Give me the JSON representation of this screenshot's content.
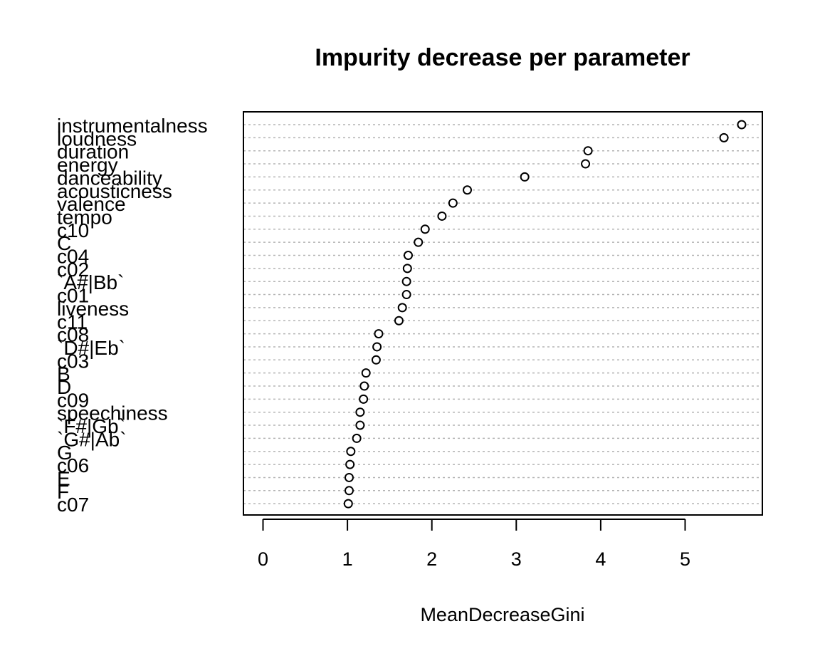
{
  "chart_data": {
    "type": "scatter",
    "title": "Impurity decrease per parameter",
    "xlabel": "MeanDecreaseGini",
    "ylabel": "",
    "xlim": [
      0,
      5.8
    ],
    "xticks": [
      0,
      1,
      2,
      3,
      4,
      5
    ],
    "grid": "dotted horizontal",
    "categories": [
      "instrumentalness",
      "loudness",
      "duration",
      "energy",
      "danceability",
      "acousticness",
      "valence",
      "tempo",
      "c10",
      "C",
      "c04",
      "c02",
      "`A#|Bb`",
      "c01",
      "liveness",
      "c11",
      "c08",
      "`D#|Eb`",
      "c03",
      "B",
      "D",
      "c09",
      "speechiness",
      "`F#|Gb`",
      "`G#|Ab`",
      "G",
      "c06",
      "E",
      "F",
      "c07"
    ],
    "values": [
      5.67,
      5.46,
      3.85,
      3.82,
      3.1,
      2.42,
      2.25,
      2.12,
      1.92,
      1.84,
      1.72,
      1.71,
      1.7,
      1.7,
      1.65,
      1.61,
      1.37,
      1.35,
      1.34,
      1.22,
      1.2,
      1.19,
      1.15,
      1.15,
      1.11,
      1.04,
      1.03,
      1.02,
      1.02,
      1.01
    ]
  }
}
